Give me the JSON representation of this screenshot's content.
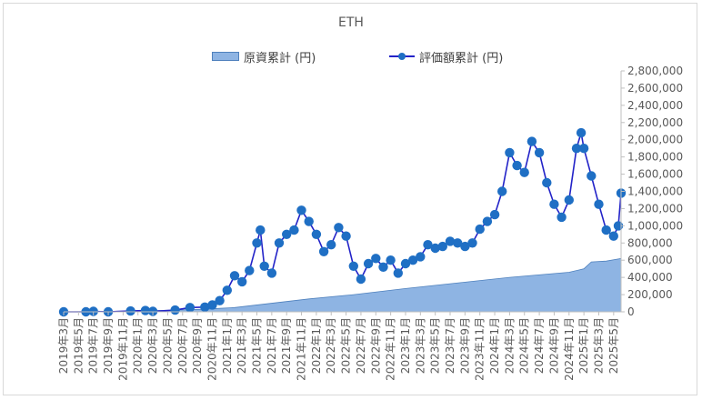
{
  "chart_data": {
    "type": "area+line",
    "title": "ETH",
    "legend_position": "top",
    "series": [
      {
        "name": "原資累計 (円)",
        "kind": "area",
        "color": "#8eb4e3",
        "points": [
          [
            "2019-03",
            0
          ],
          [
            "2020-01",
            10000
          ],
          [
            "2020-10",
            30000
          ],
          [
            "2020-12",
            40000
          ],
          [
            "2021-02",
            50000
          ],
          [
            "2021-12",
            150000
          ],
          [
            "2022-06",
            200000
          ],
          [
            "2023-01",
            270000
          ],
          [
            "2024-03",
            400000
          ],
          [
            "2024-11",
            460000
          ],
          [
            "2025-01",
            500000
          ],
          [
            "2025-02",
            580000
          ],
          [
            "2025-04",
            590000
          ],
          [
            "2025-06",
            620000
          ]
        ]
      },
      {
        "name": "評価額累計 (円)",
        "kind": "line",
        "color": "#2323c8",
        "points": [
          [
            "2019-03",
            0
          ],
          [
            "2019-06",
            0
          ],
          [
            "2019-07",
            5000
          ],
          [
            "2019-09",
            0
          ],
          [
            "2019-12",
            10000
          ],
          [
            "2020-02",
            15000
          ],
          [
            "2020-03",
            5000
          ],
          [
            "2020-06",
            20000
          ],
          [
            "2020-08",
            50000
          ],
          [
            "2020-10",
            55000
          ],
          [
            "2020-11",
            80000
          ],
          [
            "2020-12",
            130000
          ],
          [
            "2021-01",
            250000
          ],
          [
            "2021-02",
            420000
          ],
          [
            "2021-03",
            350000
          ],
          [
            "2021-04",
            480000
          ],
          [
            "2021-05",
            800000
          ],
          [
            "2021-05-15",
            950000
          ],
          [
            "2021-06",
            530000
          ],
          [
            "2021-07",
            450000
          ],
          [
            "2021-08",
            800000
          ],
          [
            "2021-09",
            900000
          ],
          [
            "2021-10",
            950000
          ],
          [
            "2021-11",
            1180000
          ],
          [
            "2021-12",
            1050000
          ],
          [
            "2022-01",
            900000
          ],
          [
            "2022-02",
            700000
          ],
          [
            "2022-03",
            780000
          ],
          [
            "2022-04",
            980000
          ],
          [
            "2022-05",
            880000
          ],
          [
            "2022-06",
            530000
          ],
          [
            "2022-07",
            380000
          ],
          [
            "2022-08",
            560000
          ],
          [
            "2022-09",
            620000
          ],
          [
            "2022-10",
            520000
          ],
          [
            "2022-11",
            600000
          ],
          [
            "2022-12",
            450000
          ],
          [
            "2023-01",
            560000
          ],
          [
            "2023-02",
            600000
          ],
          [
            "2023-03",
            640000
          ],
          [
            "2023-04",
            780000
          ],
          [
            "2023-05",
            740000
          ],
          [
            "2023-06",
            760000
          ],
          [
            "2023-07",
            820000
          ],
          [
            "2023-08",
            800000
          ],
          [
            "2023-09",
            760000
          ],
          [
            "2023-10",
            800000
          ],
          [
            "2023-11",
            960000
          ],
          [
            "2023-12",
            1050000
          ],
          [
            "2024-01",
            1130000
          ],
          [
            "2024-02",
            1400000
          ],
          [
            "2024-03",
            1850000
          ],
          [
            "2024-04",
            1700000
          ],
          [
            "2024-05",
            1620000
          ],
          [
            "2024-06",
            1980000
          ],
          [
            "2024-07",
            1850000
          ],
          [
            "2024-08",
            1500000
          ],
          [
            "2024-09",
            1250000
          ],
          [
            "2024-10",
            1100000
          ],
          [
            "2024-11",
            1300000
          ],
          [
            "2024-12",
            1900000
          ],
          [
            "2024-12-20",
            2080000
          ],
          [
            "2025-01",
            1900000
          ],
          [
            "2025-02",
            1580000
          ],
          [
            "2025-03",
            1250000
          ],
          [
            "2025-04",
            950000
          ],
          [
            "2025-05",
            880000
          ],
          [
            "2025-05-20",
            1000000
          ],
          [
            "2025-06",
            1380000
          ]
        ]
      }
    ],
    "x_tick_labels": [
      "2019年3月",
      "2019年5月",
      "2019年7月",
      "2019年9月",
      "2019年11月",
      "2020年1月",
      "2020年3月",
      "2020年5月",
      "2020年7月",
      "2020年9月",
      "2020年11月",
      "2021年1月",
      "2021年3月",
      "2021年5月",
      "2021年7月",
      "2021年9月",
      "2021年11月",
      "2022年1月",
      "2022年3月",
      "2022年5月",
      "2022年7月",
      "2022年9月",
      "2022年11月",
      "2023年1月",
      "2023年3月",
      "2023年5月",
      "2023年7月",
      "2023年9月",
      "2023年11月",
      "2024年1月",
      "2024年3月",
      "2024年5月",
      "2024年7月",
      "2024年9月",
      "2024年11月",
      "2025年1月",
      "2025年3月",
      "2025年5月"
    ],
    "y_ticks": [
      0,
      200000,
      400000,
      600000,
      800000,
      1000000,
      1200000,
      1400000,
      1600000,
      1800000,
      2000000,
      2200000,
      2400000,
      2600000,
      2800000
    ],
    "y_tick_labels": [
      "0",
      "200,000",
      "400,000",
      "600,000",
      "800,000",
      "1,000,000",
      "1,200,000",
      "1,400,000",
      "1,600,000",
      "1,800,000",
      "2,000,000",
      "2,200,000",
      "2,400,000",
      "2,600,000",
      "2,800,000"
    ],
    "ylim": [
      0,
      2800000
    ],
    "xlim": [
      "2019-03",
      "2025-06"
    ],
    "grid": false,
    "colors": {
      "area_fill": "#8eb4e3",
      "area_edge": "#4f81bd",
      "line": "#2323c8",
      "marker": "#1f6fc4"
    }
  }
}
